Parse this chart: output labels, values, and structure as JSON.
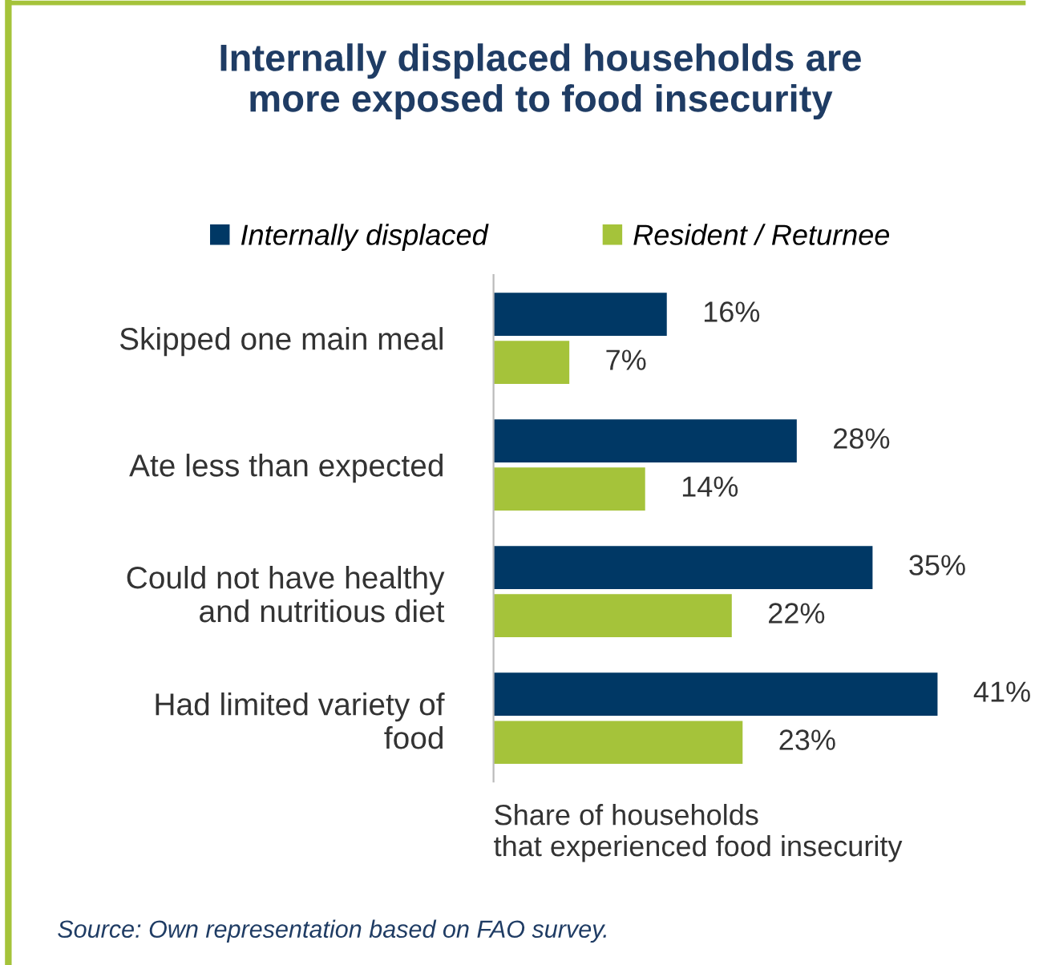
{
  "chart_data": {
    "type": "bar",
    "orientation": "horizontal",
    "title": "Internally displaced households are\nmore exposed to food insecurity",
    "categories": [
      "Skipped one main meal",
      "Ate less than expected",
      "Could not have healthy\nand nutritious diet",
      "Had limited variety of\nfood"
    ],
    "series": [
      {
        "name": "Internally displaced",
        "color": "#003865",
        "values": [
          16,
          28,
          35,
          41
        ],
        "value_labels": [
          "16%",
          "28%",
          "35%",
          "41%"
        ]
      },
      {
        "name": "Resident / Returnee",
        "color": "#a5c33a",
        "values": [
          7,
          14,
          22,
          23
        ],
        "value_labels": [
          "7%",
          "14%",
          "22%",
          "23%"
        ]
      }
    ],
    "xlabel": "Share of households\nthat experienced food insecurity",
    "annotations": [
      "Source: Own representation based on FAO survey."
    ],
    "legend": "top",
    "grid": false
  }
}
